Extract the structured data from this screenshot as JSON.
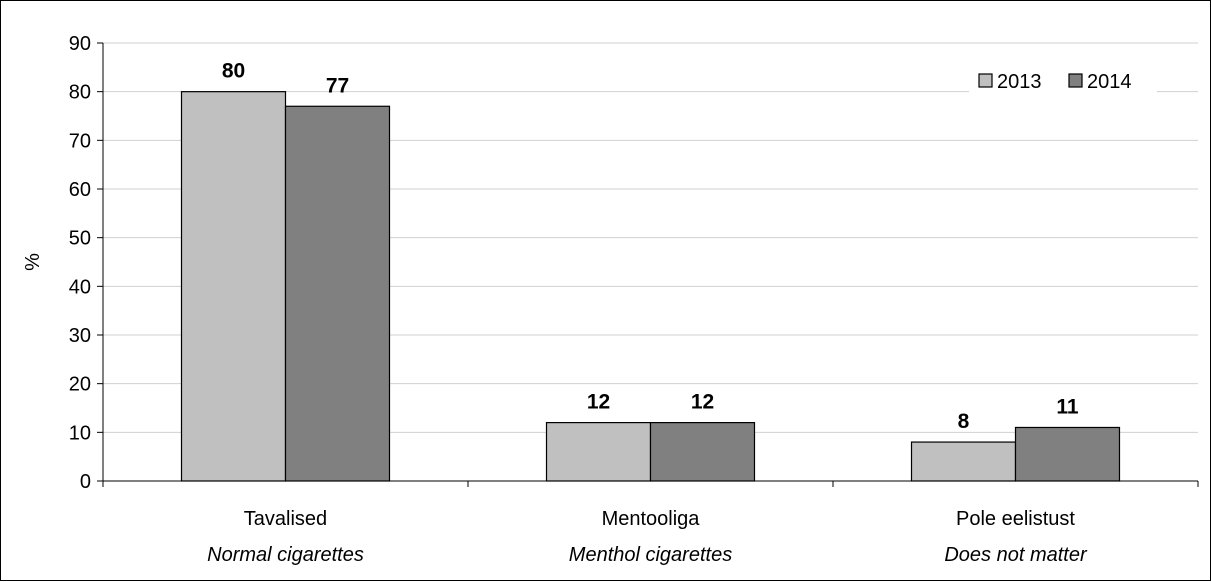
{
  "chart_data": {
    "type": "bar",
    "ylabel": "%",
    "ylim": [
      0,
      90
    ],
    "yticks": [
      0,
      10,
      20,
      30,
      40,
      50,
      60,
      70,
      80,
      90
    ],
    "grid": true,
    "legend_position": "top-right",
    "categories": [
      {
        "label": "Tavalised",
        "sublabel": "Normal cigarettes"
      },
      {
        "label": "Mentooliga",
        "sublabel": "Menthol cigarettes"
      },
      {
        "label": "Pole eelistust",
        "sublabel": "Does not matter"
      }
    ],
    "series": [
      {
        "name": "2013",
        "color": "#c0c0c0",
        "values": [
          80,
          12,
          8
        ]
      },
      {
        "name": "2014",
        "color": "#808080",
        "values": [
          77,
          12,
          11
        ]
      }
    ]
  }
}
